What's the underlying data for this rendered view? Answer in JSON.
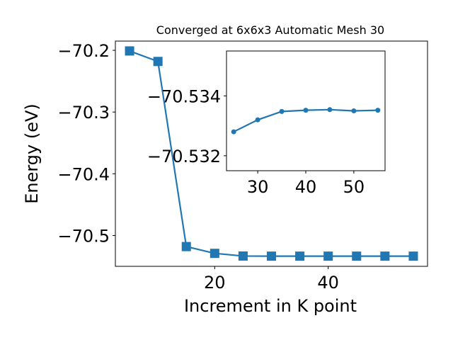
{
  "chart_data": [
    {
      "type": "line",
      "title": "Converged at 6x6x3 Automatic Mesh 30",
      "xlabel": "Increment in K point",
      "ylabel": "Energy (eV)",
      "xlim": [
        2.5,
        57.5
      ],
      "ylim": [
        -70.55,
        -70.185
      ],
      "x_ticks": [
        20,
        40
      ],
      "x_tick_labels": [
        "20",
        "40"
      ],
      "y_ticks": [
        -70.2,
        -70.3,
        -70.4,
        -70.5
      ],
      "y_tick_labels": [
        "−70.2",
        "−70.3",
        "−70.4",
        "−70.5"
      ],
      "grid": false,
      "series": [
        {
          "color": "#1f77b4",
          "marker": "square",
          "x": [
            5,
            10,
            15,
            20,
            25,
            30,
            35,
            40,
            45,
            50,
            55
          ],
          "values": [
            -70.201,
            -70.218,
            -70.518,
            -70.529,
            -70.5333,
            -70.5335,
            -70.5335,
            -70.5335,
            -70.5335,
            -70.5335,
            -70.5335
          ]
        }
      ]
    },
    {
      "type": "line",
      "title": "",
      "xlabel": "",
      "ylabel": "",
      "xlim": [
        23.5,
        56.5
      ],
      "ylim": [
        -70.5315,
        -70.5355
      ],
      "y_order": "descending",
      "x_ticks": [
        30,
        40,
        50
      ],
      "x_tick_labels": [
        "30",
        "40",
        "50"
      ],
      "y_ticks": [
        -70.534,
        -70.532
      ],
      "y_tick_labels": [
        "−70.534",
        "−70.532"
      ],
      "grid": false,
      "series": [
        {
          "color": "#1f77b4",
          "marker": "circle",
          "x": [
            25,
            30,
            35,
            40,
            45,
            50,
            55
          ],
          "values": [
            -70.5328,
            -70.5332,
            -70.53348,
            -70.53352,
            -70.53354,
            -70.5335,
            -70.53352
          ]
        }
      ]
    }
  ]
}
